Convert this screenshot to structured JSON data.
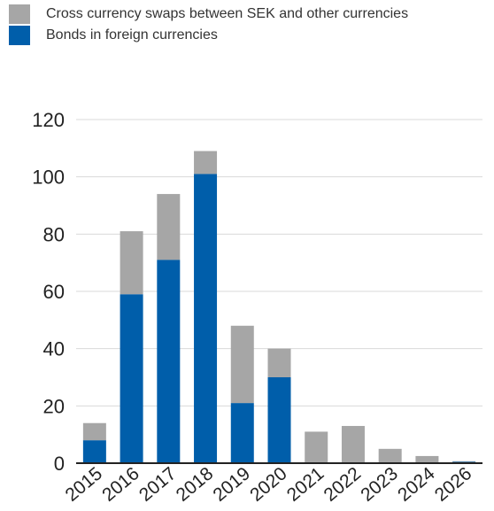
{
  "legend": {
    "swaps_label": "Cross currency swaps between SEK and other currencies",
    "bonds_label": "Bonds in foreign currencies"
  },
  "colors": {
    "swaps": "#a6a6a6",
    "bonds": "#005eaa",
    "grid": "#d9d9d9",
    "axis": "#222222"
  },
  "chart_data": {
    "type": "bar",
    "stacked": true,
    "categories": [
      "2015",
      "2016",
      "2017",
      "2018",
      "2019",
      "2020",
      "2021",
      "2022",
      "2023",
      "2024",
      "2026"
    ],
    "series": [
      {
        "name": "Bonds in foreign currencies",
        "values": [
          8,
          59,
          71,
          101,
          21,
          30,
          0,
          0,
          0,
          0,
          0.5
        ]
      },
      {
        "name": "Cross currency swaps between SEK and other currencies",
        "values": [
          6,
          22,
          23,
          8,
          27,
          10,
          11,
          13,
          5,
          2.5,
          0.2
        ]
      }
    ],
    "yticks": [
      0,
      20,
      40,
      60,
      80,
      100,
      120
    ],
    "ylim": [
      0,
      120
    ],
    "grid": true,
    "legend_position": "top-left"
  }
}
